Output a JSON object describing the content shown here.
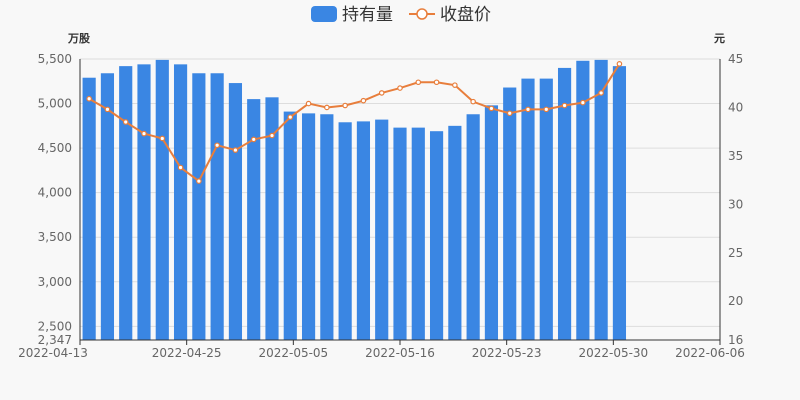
{
  "legend": {
    "bar_label": "持有量",
    "line_label": "收盘价"
  },
  "colors": {
    "bar": "#3a86e3",
    "line": "#e87e3c",
    "axis": "#333333",
    "grid": "#dddddd",
    "text": "#666666"
  },
  "chart_data": {
    "type": "bar",
    "title": "",
    "x": [
      "2022-04-13",
      "2022-04-14",
      "2022-04-15",
      "2022-04-18",
      "2022-04-19",
      "2022-04-20",
      "2022-04-21",
      "2022-04-22",
      "2022-04-25",
      "2022-04-26",
      "2022-04-27",
      "2022-04-28",
      "2022-04-29",
      "2022-05-05",
      "2022-05-06",
      "2022-05-09",
      "2022-05-10",
      "2022-05-11",
      "2022-05-12",
      "2022-05-13",
      "2022-05-16",
      "2022-05-17",
      "2022-05-18",
      "2022-05-19",
      "2022-05-20",
      "2022-05-23",
      "2022-05-24",
      "2022-05-25",
      "2022-05-26",
      "2022-05-27",
      "2022-05-30",
      "2022-05-31",
      "2022-06-01",
      "2022-06-02",
      "2022-06-06"
    ],
    "x_tick_labels": [
      "2022-04-13",
      "2022-04-25",
      "2022-05-05",
      "2022-05-16",
      "2022-05-23",
      "2022-05-30",
      "2022-06-06"
    ],
    "series": [
      {
        "name": "持有量",
        "type": "bar",
        "axis": "left",
        "values": [
          5290,
          5340,
          5420,
          5440,
          5490,
          5440,
          5340,
          5340,
          5230,
          5050,
          5070,
          4910,
          4890,
          4880,
          4790,
          4800,
          4820,
          4730,
          4730,
          4690,
          4750,
          4880,
          4980,
          5180,
          5280,
          5280,
          5400,
          5480,
          5490,
          5420,
          null,
          null,
          null,
          null,
          null
        ]
      },
      {
        "name": "收盘价",
        "type": "line",
        "axis": "right",
        "values": [
          40.9,
          39.8,
          38.5,
          37.3,
          36.8,
          33.8,
          32.4,
          36.1,
          35.6,
          36.7,
          37.1,
          39.0,
          40.4,
          40.0,
          40.2,
          40.7,
          41.5,
          42.0,
          42.6,
          42.6,
          42.3,
          40.6,
          39.9,
          39.4,
          39.8,
          39.8,
          40.2,
          40.5,
          41.5,
          44.5,
          null,
          null,
          null,
          null,
          null
        ]
      }
    ],
    "y_left": {
      "label": "万股",
      "min": 2347,
      "max": 5500,
      "ticks": [
        2347,
        2500,
        3000,
        3500,
        4000,
        4500,
        5000,
        5500
      ],
      "tick_labels": [
        "2,347",
        "2,500",
        "3,000",
        "3,500",
        "4,000",
        "4,500",
        "5,000",
        "5,500"
      ]
    },
    "y_right": {
      "label": "元",
      "min": 16,
      "max": 45,
      "ticks": [
        16,
        20,
        25,
        30,
        35,
        40,
        45
      ],
      "tick_labels": [
        "16",
        "20",
        "25",
        "30",
        "35",
        "40",
        "45"
      ]
    },
    "grid": true,
    "legend_position": "top-center"
  }
}
